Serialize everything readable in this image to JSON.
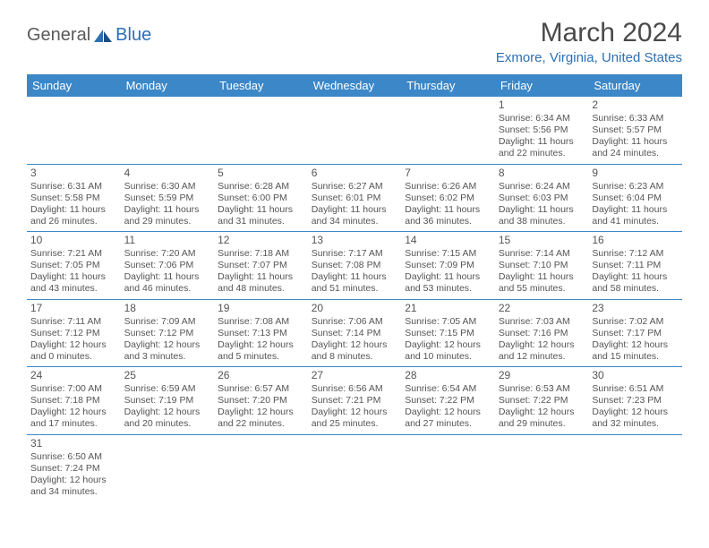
{
  "logo": {
    "general": "General",
    "blue": "Blue"
  },
  "title": "March 2024",
  "location": "Exmore, Virginia, United States",
  "colors": {
    "header_bg": "#3b87c8",
    "header_text": "#ffffff",
    "accent": "#2d6fb5",
    "body_text": "#555555",
    "title_text": "#4a4a4a",
    "logo_gray": "#5a5a5a"
  },
  "weekdays": [
    "Sunday",
    "Monday",
    "Tuesday",
    "Wednesday",
    "Thursday",
    "Friday",
    "Saturday"
  ],
  "days": {
    "1": {
      "sunrise": "6:34 AM",
      "sunset": "5:56 PM",
      "daylight": "11 hours and 22 minutes."
    },
    "2": {
      "sunrise": "6:33 AM",
      "sunset": "5:57 PM",
      "daylight": "11 hours and 24 minutes."
    },
    "3": {
      "sunrise": "6:31 AM",
      "sunset": "5:58 PM",
      "daylight": "11 hours and 26 minutes."
    },
    "4": {
      "sunrise": "6:30 AM",
      "sunset": "5:59 PM",
      "daylight": "11 hours and 29 minutes."
    },
    "5": {
      "sunrise": "6:28 AM",
      "sunset": "6:00 PM",
      "daylight": "11 hours and 31 minutes."
    },
    "6": {
      "sunrise": "6:27 AM",
      "sunset": "6:01 PM",
      "daylight": "11 hours and 34 minutes."
    },
    "7": {
      "sunrise": "6:26 AM",
      "sunset": "6:02 PM",
      "daylight": "11 hours and 36 minutes."
    },
    "8": {
      "sunrise": "6:24 AM",
      "sunset": "6:03 PM",
      "daylight": "11 hours and 38 minutes."
    },
    "9": {
      "sunrise": "6:23 AM",
      "sunset": "6:04 PM",
      "daylight": "11 hours and 41 minutes."
    },
    "10": {
      "sunrise": "7:21 AM",
      "sunset": "7:05 PM",
      "daylight": "11 hours and 43 minutes."
    },
    "11": {
      "sunrise": "7:20 AM",
      "sunset": "7:06 PM",
      "daylight": "11 hours and 46 minutes."
    },
    "12": {
      "sunrise": "7:18 AM",
      "sunset": "7:07 PM",
      "daylight": "11 hours and 48 minutes."
    },
    "13": {
      "sunrise": "7:17 AM",
      "sunset": "7:08 PM",
      "daylight": "11 hours and 51 minutes."
    },
    "14": {
      "sunrise": "7:15 AM",
      "sunset": "7:09 PM",
      "daylight": "11 hours and 53 minutes."
    },
    "15": {
      "sunrise": "7:14 AM",
      "sunset": "7:10 PM",
      "daylight": "11 hours and 55 minutes."
    },
    "16": {
      "sunrise": "7:12 AM",
      "sunset": "7:11 PM",
      "daylight": "11 hours and 58 minutes."
    },
    "17": {
      "sunrise": "7:11 AM",
      "sunset": "7:12 PM",
      "daylight": "12 hours and 0 minutes."
    },
    "18": {
      "sunrise": "7:09 AM",
      "sunset": "7:12 PM",
      "daylight": "12 hours and 3 minutes."
    },
    "19": {
      "sunrise": "7:08 AM",
      "sunset": "7:13 PM",
      "daylight": "12 hours and 5 minutes."
    },
    "20": {
      "sunrise": "7:06 AM",
      "sunset": "7:14 PM",
      "daylight": "12 hours and 8 minutes."
    },
    "21": {
      "sunrise": "7:05 AM",
      "sunset": "7:15 PM",
      "daylight": "12 hours and 10 minutes."
    },
    "22": {
      "sunrise": "7:03 AM",
      "sunset": "7:16 PM",
      "daylight": "12 hours and 12 minutes."
    },
    "23": {
      "sunrise": "7:02 AM",
      "sunset": "7:17 PM",
      "daylight": "12 hours and 15 minutes."
    },
    "24": {
      "sunrise": "7:00 AM",
      "sunset": "7:18 PM",
      "daylight": "12 hours and 17 minutes."
    },
    "25": {
      "sunrise": "6:59 AM",
      "sunset": "7:19 PM",
      "daylight": "12 hours and 20 minutes."
    },
    "26": {
      "sunrise": "6:57 AM",
      "sunset": "7:20 PM",
      "daylight": "12 hours and 22 minutes."
    },
    "27": {
      "sunrise": "6:56 AM",
      "sunset": "7:21 PM",
      "daylight": "12 hours and 25 minutes."
    },
    "28": {
      "sunrise": "6:54 AM",
      "sunset": "7:22 PM",
      "daylight": "12 hours and 27 minutes."
    },
    "29": {
      "sunrise": "6:53 AM",
      "sunset": "7:22 PM",
      "daylight": "12 hours and 29 minutes."
    },
    "30": {
      "sunrise": "6:51 AM",
      "sunset": "7:23 PM",
      "daylight": "12 hours and 32 minutes."
    },
    "31": {
      "sunrise": "6:50 AM",
      "sunset": "7:24 PM",
      "daylight": "12 hours and 34 minutes."
    }
  },
  "grid": [
    [
      null,
      null,
      null,
      null,
      null,
      "1",
      "2"
    ],
    [
      "3",
      "4",
      "5",
      "6",
      "7",
      "8",
      "9"
    ],
    [
      "10",
      "11",
      "12",
      "13",
      "14",
      "15",
      "16"
    ],
    [
      "17",
      "18",
      "19",
      "20",
      "21",
      "22",
      "23"
    ],
    [
      "24",
      "25",
      "26",
      "27",
      "28",
      "29",
      "30"
    ],
    [
      "31",
      null,
      null,
      null,
      null,
      null,
      null
    ]
  ],
  "labels": {
    "sunrise": "Sunrise: ",
    "sunset": "Sunset: ",
    "daylight": "Daylight: "
  }
}
